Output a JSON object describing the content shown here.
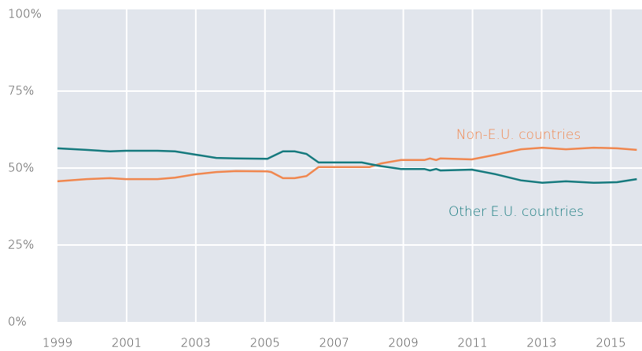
{
  "chart_data": {
    "type": "line",
    "x": [
      1999,
      1999.84,
      2000.52,
      2000.98,
      2001.89,
      2002.4,
      2003.02,
      2003.59,
      2004.16,
      2005.07,
      2005.18,
      2005.52,
      2005.86,
      2006.2,
      2006.55,
      2007.8,
      2008.02,
      2008.36,
      2008.93,
      2009.61,
      2009.77,
      2009.95,
      2010.07,
      2010.98,
      2011.66,
      2012.4,
      2013.02,
      2013.7,
      2014.5,
      2015.18,
      2015.75
    ],
    "series": [
      {
        "name": "Non-E.U. countries",
        "color": "#f0874f",
        "values": [
          45.7,
          46.4,
          46.7,
          46.4,
          46.4,
          46.9,
          48.0,
          48.7,
          49.0,
          48.9,
          48.7,
          46.7,
          46.7,
          47.4,
          50.3,
          50.3,
          50.3,
          51.5,
          52.6,
          52.6,
          53.1,
          52.6,
          53.1,
          52.8,
          54.3,
          56.1,
          56.6,
          56.1,
          56.6,
          56.4,
          55.9
        ]
      },
      {
        "name": "Other E.U. countries",
        "color": "#167a7e",
        "values": [
          56.4,
          55.9,
          55.4,
          55.6,
          55.6,
          55.4,
          54.3,
          53.3,
          53.1,
          53.0,
          53.6,
          55.4,
          55.4,
          54.6,
          51.8,
          51.8,
          51.3,
          50.6,
          49.7,
          49.7,
          49.2,
          49.7,
          49.2,
          49.5,
          48.0,
          46.0,
          45.2,
          45.7,
          45.2,
          45.4,
          46.4
        ]
      }
    ],
    "xlim": [
      1999,
      2015.9
    ],
    "xticks": [
      1999,
      2001,
      2003,
      2005,
      2007,
      2009,
      2011,
      2013,
      2015
    ],
    "ylim": [
      0,
      100
    ],
    "yticks": [
      {
        "value": 0,
        "label": "0%"
      },
      {
        "value": 25,
        "label": "25%"
      },
      {
        "value": 50,
        "label": "50%"
      },
      {
        "value": 75,
        "label": "75%"
      },
      {
        "value": 100,
        "label": "100%"
      }
    ],
    "grid": true
  }
}
